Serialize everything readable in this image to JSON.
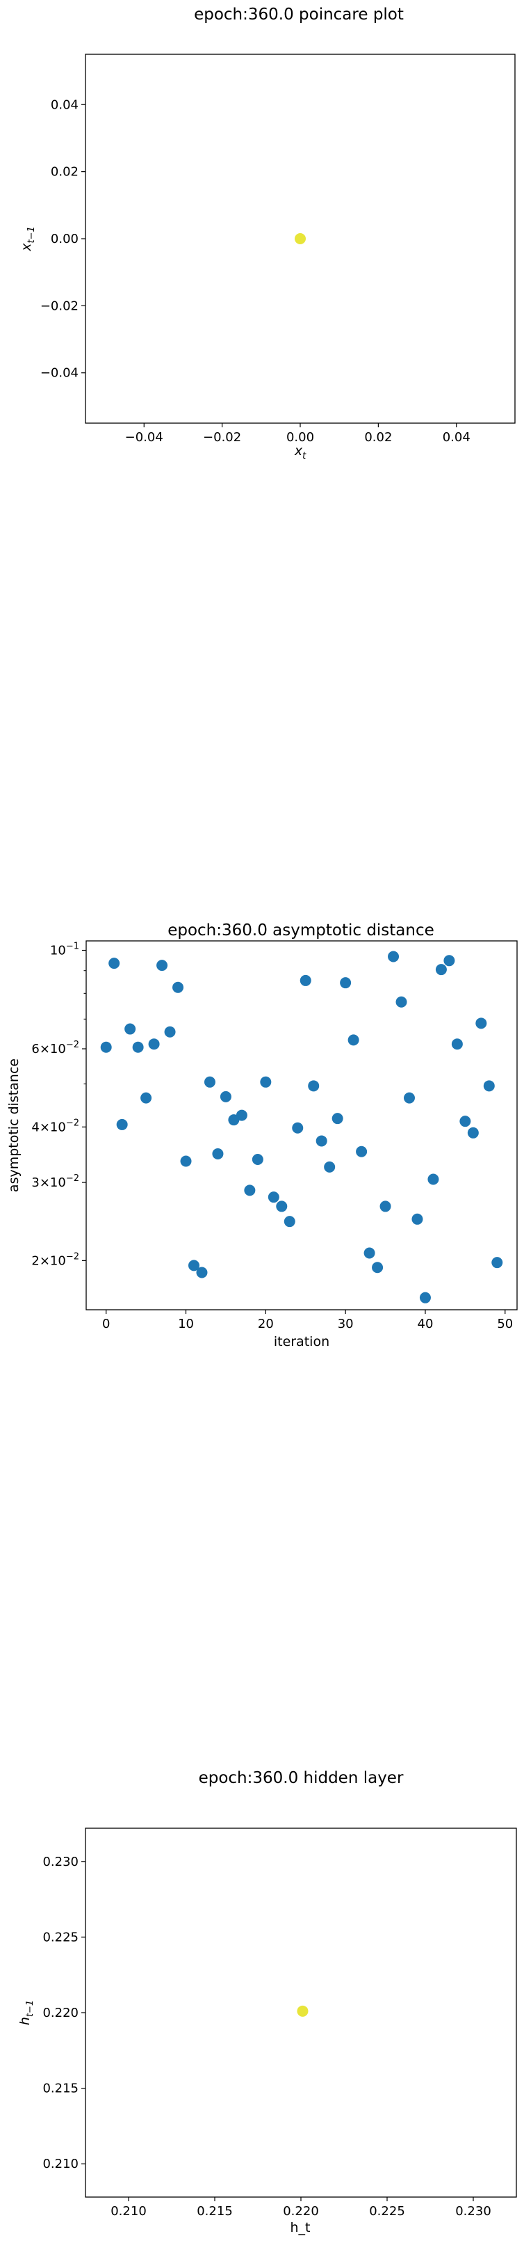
{
  "chart_data": [
    {
      "type": "scatter",
      "title": "epoch:360.0 poincare plot",
      "xlabel_base": "x",
      "xlabel_sub": "t",
      "ylabel_base": "x",
      "ylabel_sub": "t−1",
      "xlim": [
        -0.055,
        0.055
      ],
      "ylim": [
        -0.055,
        0.055
      ],
      "xticks": [
        -0.04,
        -0.02,
        0.0,
        0.02,
        0.04
      ],
      "xtick_labels": [
        "−0.04",
        "−0.02",
        "0.00",
        "0.02",
        "0.04"
      ],
      "yticks": [
        -0.04,
        -0.02,
        0.0,
        0.02,
        0.04
      ],
      "ytick_labels": [
        "−0.04",
        "−0.02",
        "0.00",
        "0.02",
        "0.04"
      ],
      "point_color": "#e8e53a",
      "x": [
        0.0
      ],
      "y": [
        0.0
      ]
    },
    {
      "type": "scatter",
      "title": "epoch:360.0 asymptotic distance",
      "xlabel": "iteration",
      "ylabel": "asymptotic distance",
      "yscale": "log",
      "xlim": [
        -2.5,
        51.5
      ],
      "ylim": [
        0.0155,
        0.105
      ],
      "xticks": [
        0,
        10,
        20,
        30,
        40,
        50
      ],
      "xtick_labels": [
        "0",
        "10",
        "20",
        "30",
        "40",
        "50"
      ],
      "yticks": [
        0.02,
        0.03,
        0.04,
        0.06,
        0.1
      ],
      "ytick_labels": [
        {
          "base": "2×10",
          "exp": "−2"
        },
        {
          "base": "3×10",
          "exp": "−2"
        },
        {
          "base": "4×10",
          "exp": "−2"
        },
        {
          "base": "6×10",
          "exp": "−2"
        },
        {
          "base": "10",
          "exp": "−1"
        }
      ],
      "point_color": "#1f77b4",
      "x": [
        0,
        1,
        2,
        3,
        4,
        5,
        6,
        7,
        8,
        9,
        10,
        11,
        12,
        13,
        14,
        15,
        16,
        17,
        18,
        19,
        20,
        21,
        22,
        23,
        24,
        25,
        26,
        27,
        28,
        29,
        30,
        31,
        32,
        33,
        34,
        35,
        36,
        37,
        38,
        39,
        40,
        41,
        42,
        43,
        44,
        45,
        46,
        47,
        48,
        49
      ],
      "y": [
        0.0605,
        0.0935,
        0.0405,
        0.0665,
        0.0605,
        0.0465,
        0.0615,
        0.0925,
        0.0655,
        0.0825,
        0.0335,
        0.0195,
        0.0188,
        0.0505,
        0.0348,
        0.0468,
        0.0415,
        0.0425,
        0.0288,
        0.0338,
        0.0505,
        0.0278,
        0.0265,
        0.0245,
        0.0398,
        0.0855,
        0.0495,
        0.0372,
        0.0325,
        0.0418,
        0.0845,
        0.0628,
        0.0352,
        0.0208,
        0.0193,
        0.0265,
        0.0968,
        0.0765,
        0.0465,
        0.0248,
        0.0165,
        0.0305,
        0.0905,
        0.0948,
        0.0615,
        0.0412,
        0.0388,
        0.0685,
        0.0495,
        0.0198
      ]
    },
    {
      "type": "scatter",
      "title": "epoch:360.0 hidden layer",
      "xlabel": "h_t",
      "ylabel_base": "h",
      "ylabel_sub": "t−1",
      "xlim": [
        0.2075,
        0.2325
      ],
      "ylim": [
        0.2078,
        0.2322
      ],
      "xticks": [
        0.21,
        0.215,
        0.22,
        0.225,
        0.23
      ],
      "xtick_labels": [
        "0.210",
        "0.215",
        "0.220",
        "0.225",
        "0.230"
      ],
      "yticks": [
        0.21,
        0.215,
        0.22,
        0.225,
        0.23
      ],
      "ytick_labels": [
        "0.210",
        "0.215",
        "0.220",
        "0.225",
        "0.230"
      ],
      "point_color": "#e8e53a",
      "x": [
        0.2201
      ],
      "y": [
        0.2201
      ]
    }
  ]
}
